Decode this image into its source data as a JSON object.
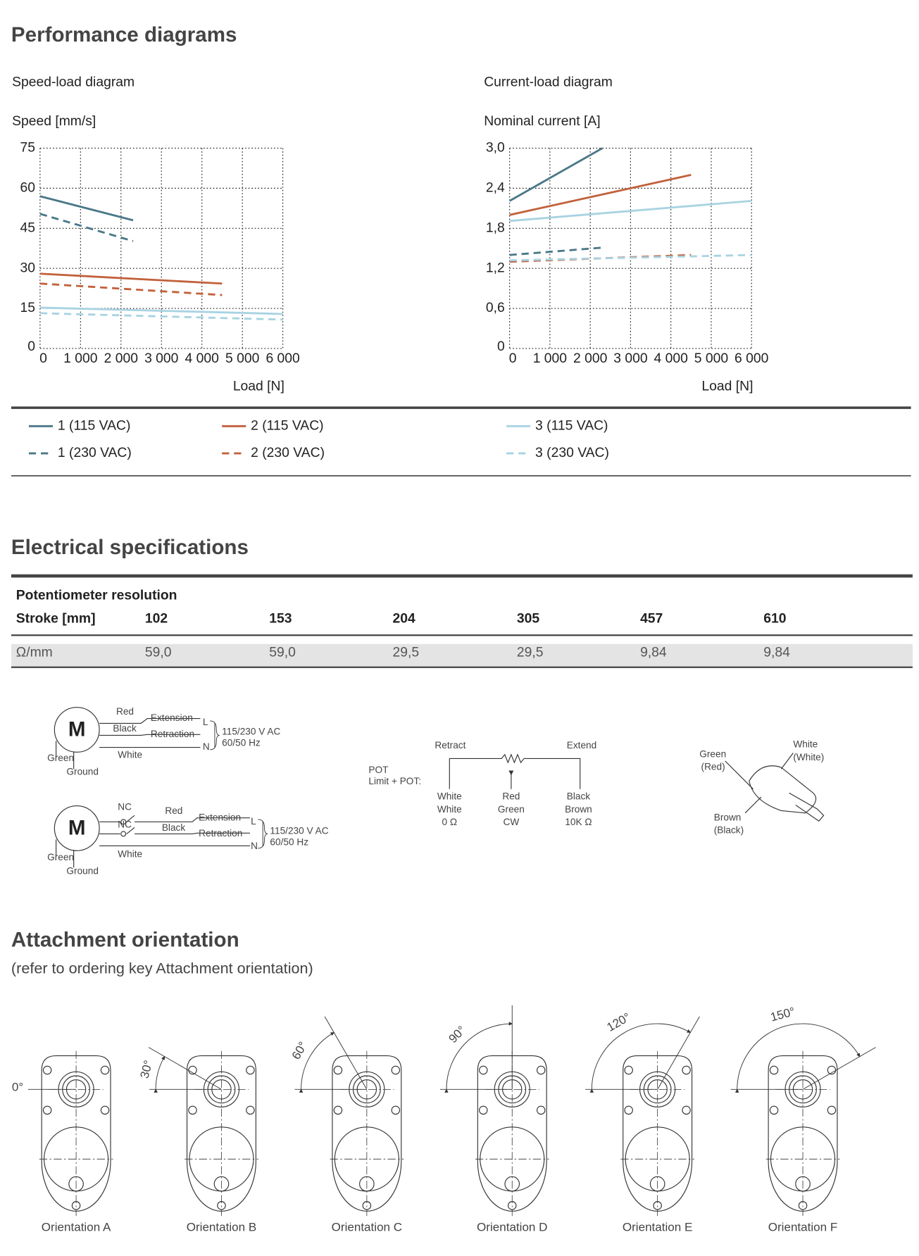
{
  "sections": {
    "performance": "Performance diagrams",
    "electrical": "Electrical specifications",
    "attachment": "Attachment orientation",
    "attachment_note": "(refer to ordering key Attachment orientation)"
  },
  "chart_data": [
    {
      "type": "line",
      "title": "Speed-load diagram",
      "ylabel": "Speed [mm/s]",
      "xlabel": "Load [N]",
      "xlim": [
        0,
        6000
      ],
      "ylim": [
        0,
        75
      ],
      "xticks": [
        0,
        {
          "value": 1000,
          "label": "1 000"
        },
        {
          "value": 2000,
          "label": "2 000"
        },
        {
          "value": 3000,
          "label": "3 000"
        },
        {
          "value": 4000,
          "label": "4 000"
        },
        {
          "value": 5000,
          "label": "5 000"
        },
        {
          "value": 6000,
          "label": "6 000"
        }
      ],
      "yticks": [
        0,
        15,
        30,
        45,
        60,
        75
      ],
      "grid": true,
      "series": [
        {
          "name": "1 (115 VAC)",
          "color": "#4a7888",
          "dashed": false,
          "x": [
            0,
            2300
          ],
          "values": [
            57,
            48
          ]
        },
        {
          "name": "1 (230 VAC)",
          "color": "#4a7888",
          "dashed": true,
          "x": [
            0,
            2300
          ],
          "values": [
            50.4,
            40.2
          ]
        },
        {
          "name": "2 (115 VAC)",
          "color": "#c2613c",
          "dashed": false,
          "x": [
            0,
            4500
          ],
          "values": [
            28,
            24.3
          ]
        },
        {
          "name": "2 (230 VAC)",
          "color": "#c2613c",
          "dashed": true,
          "x": [
            0,
            4500
          ],
          "values": [
            24.3,
            20
          ]
        },
        {
          "name": "3 (115 VAC)",
          "color": "#a8d3e2",
          "dashed": false,
          "x": [
            0,
            6000
          ],
          "values": [
            15.3,
            12.9
          ]
        },
        {
          "name": "3 (230 VAC)",
          "color": "#a8d3e2",
          "dashed": true,
          "x": [
            0,
            6000
          ],
          "values": [
            13.2,
            10.8
          ]
        }
      ]
    },
    {
      "type": "line",
      "title": "Current-load diagram",
      "ylabel": "Nominal current [A]",
      "xlabel": "Load [N]",
      "xlim": [
        0,
        6000
      ],
      "ylim": [
        0,
        3
      ],
      "xticks": [
        0,
        {
          "value": 1000,
          "label": "1 000"
        },
        {
          "value": 2000,
          "label": "2 000"
        },
        {
          "value": 3000,
          "label": "3 000"
        },
        {
          "value": 4000,
          "label": "4 000"
        },
        {
          "value": 5000,
          "label": "5 000"
        },
        {
          "value": 6000,
          "label": "6 000"
        }
      ],
      "yticks": [
        0,
        {
          "value": 0.6,
          "label": "0,6"
        },
        {
          "value": 1.2,
          "label": "1,2"
        },
        {
          "value": 1.8,
          "label": "1,8"
        },
        {
          "value": 2.4,
          "label": "2,4"
        },
        {
          "value": 3,
          "label": "3,0"
        }
      ],
      "grid": true,
      "series": [
        {
          "name": "1 (115 VAC)",
          "color": "#4a7888",
          "dashed": false,
          "x": [
            0,
            2300
          ],
          "values": [
            2.21,
            3
          ]
        },
        {
          "name": "1 (230 VAC)",
          "color": "#4a7888",
          "dashed": true,
          "x": [
            0,
            2300
          ],
          "values": [
            1.4,
            1.51
          ]
        },
        {
          "name": "2 (115 VAC)",
          "color": "#c2613c",
          "dashed": false,
          "x": [
            0,
            4500
          ],
          "values": [
            2,
            2.6
          ]
        },
        {
          "name": "2 (230 VAC)",
          "color": "#c2613c",
          "dashed": true,
          "x": [
            0,
            4500
          ],
          "values": [
            1.3,
            1.4
          ]
        },
        {
          "name": "3 (115 VAC)",
          "color": "#a8d3e2",
          "dashed": false,
          "x": [
            0,
            6000
          ],
          "values": [
            1.91,
            2.21
          ]
        },
        {
          "name": "3 (230 VAC)",
          "color": "#a8d3e2",
          "dashed": true,
          "x": [
            0,
            6000
          ],
          "values": [
            1.32,
            1.4
          ]
        }
      ]
    }
  ],
  "table": {
    "title": "Potentiometer resolution",
    "header": [
      "Stroke [mm]",
      "102",
      "153",
      "204",
      "305",
      "457",
      "610"
    ],
    "rows": [
      [
        "Ω/mm",
        "59,0",
        "59,0",
        "29,5",
        "29,5",
        "9,84",
        "9,84"
      ]
    ]
  },
  "wiring": {
    "standard": {
      "motor": "M",
      "red": "Red",
      "black": "Black",
      "extension": "Extension",
      "retraction": "Retraction",
      "l": "L",
      "n": "N",
      "voltage": "115/230 V AC",
      "frequency": "60/50 Hz",
      "green": "Green",
      "white": "White",
      "ground": "Ground"
    },
    "limit": {
      "motor": "M",
      "nc1": "NC",
      "nc2": "NC",
      "red": "Red",
      "black": "Black",
      "extension": "Extension",
      "retraction": "Retraction",
      "l": "L",
      "n": "N",
      "voltage": "115/230 V AC",
      "frequency": "60/50 Hz",
      "green": "Green",
      "white": "White",
      "ground": "Ground"
    }
  },
  "pot": {
    "retract": "Retract",
    "extend": "Extend",
    "title": "POT",
    "subtitle": "Limit + POT:",
    "left": [
      "White",
      "White",
      "0 Ω"
    ],
    "middle": [
      "Red",
      "Green",
      "CW"
    ],
    "right": [
      "Black",
      "Brown",
      "10K Ω"
    ]
  },
  "pot_sensor": {
    "green": "Green",
    "red": "(Red)",
    "white": "White",
    "white2": "(White)",
    "brown": "Brown",
    "black": "(Black)"
  },
  "orientations": [
    {
      "angle": 0,
      "angle_label": "0°",
      "caption": "Orientation A"
    },
    {
      "angle": 30,
      "angle_label": "30°",
      "caption": "Orientation B"
    },
    {
      "angle": 60,
      "angle_label": "60°",
      "caption": "Orientation C"
    },
    {
      "angle": 90,
      "angle_label": "90°",
      "caption": "Orientation D"
    },
    {
      "angle": 120,
      "angle_label": "120°",
      "caption": "Orientation E"
    },
    {
      "angle": 150,
      "angle_label": "150°",
      "caption": "Orientation F"
    }
  ]
}
